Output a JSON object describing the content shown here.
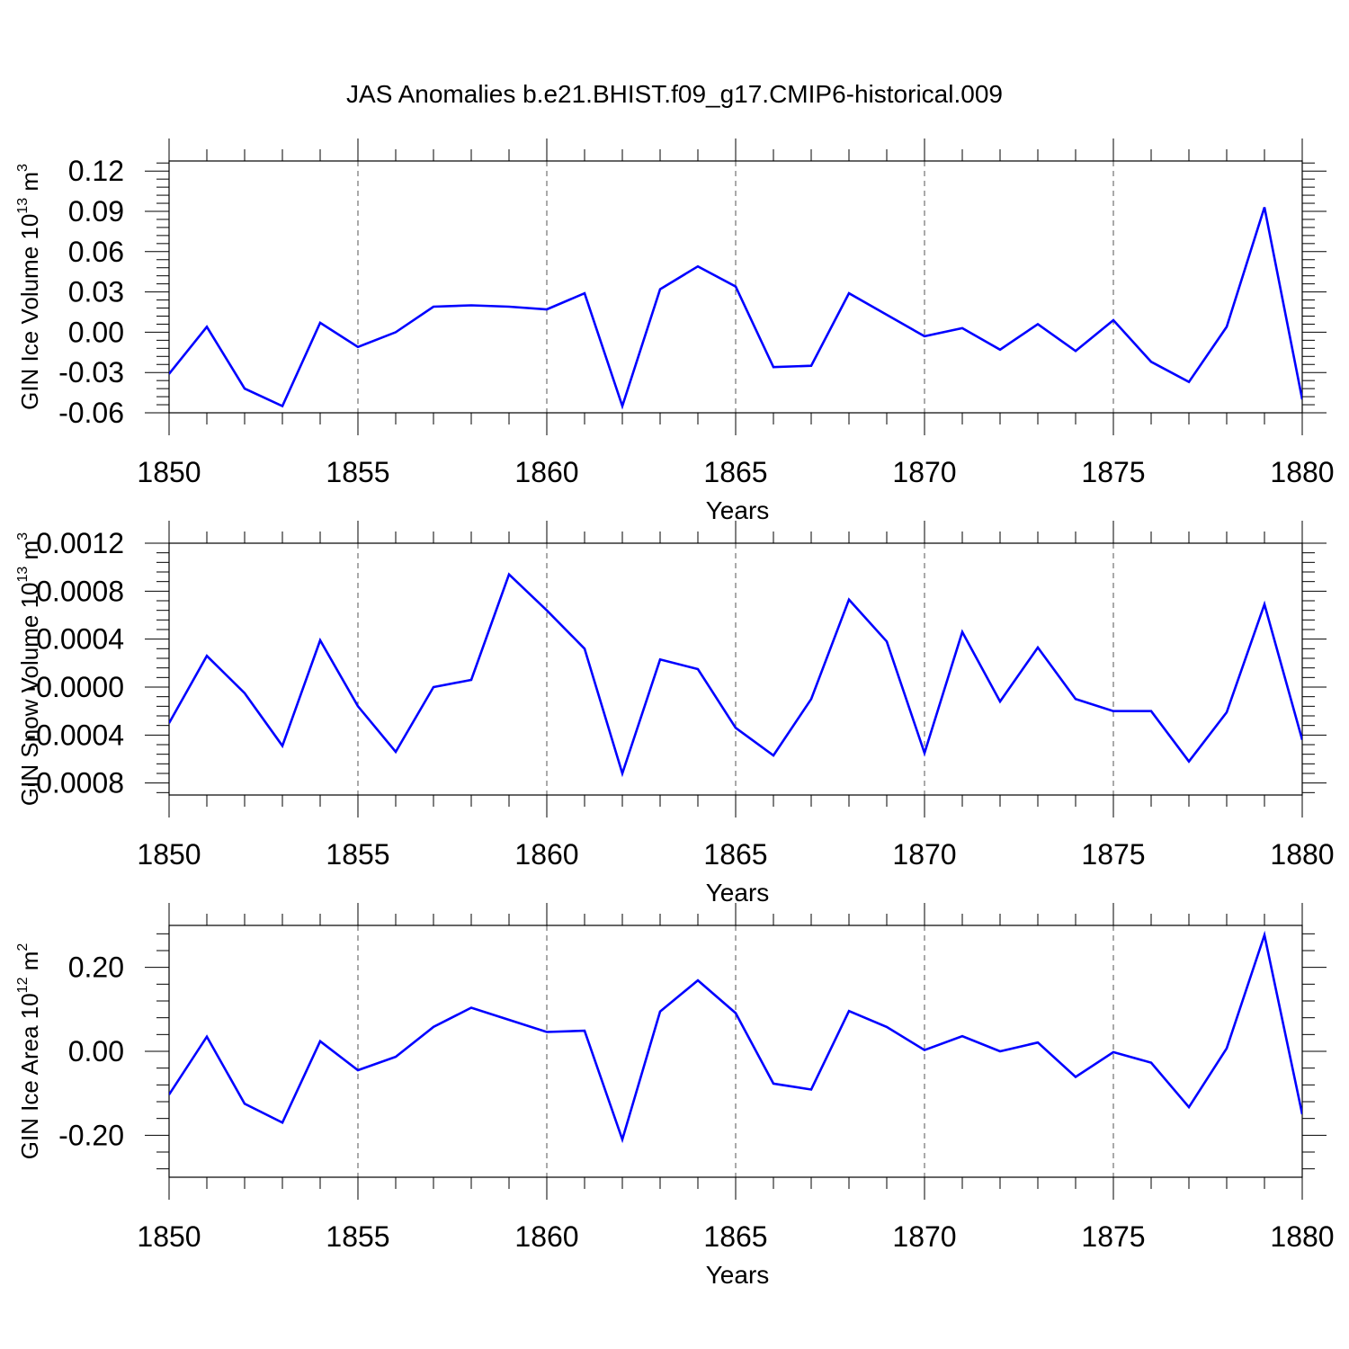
{
  "title": "JAS Anomalies b.e21.BHIST.f09_g17.CMIP6-historical.009",
  "colors": {
    "line": "#0000ff",
    "axis": "#000000",
    "grid": "#555555"
  },
  "chart_data": [
    {
      "type": "line",
      "title": "JAS Anomalies b.e21.BHIST.f09_g17.CMIP6-historical.009",
      "xlabel": "Years",
      "ylabel_base": "GIN Ice Volume 10",
      "ylabel_exp": "13",
      "ylabel_unit": " m",
      "ylabel_unit_exp": "3",
      "xlim": [
        1850,
        1880
      ],
      "ylim": [
        -0.06,
        0.1275
      ],
      "xticks": [
        1850,
        1855,
        1860,
        1865,
        1870,
        1875,
        1880
      ],
      "xtick_labels": [
        "1850",
        "1855",
        "1860",
        "1865",
        "1870",
        "1875",
        "1880"
      ],
      "yticks": [
        -0.06,
        -0.03,
        0.0,
        0.03,
        0.06,
        0.09,
        0.12
      ],
      "ytick_labels": [
        "-0.06",
        "-0.03",
        "0.00",
        "0.03",
        "0.06",
        "0.09",
        "0.12"
      ],
      "grid": "vertical-dashed",
      "x": [
        1850,
        1851,
        1852,
        1853,
        1854,
        1855,
        1856,
        1857,
        1858,
        1859,
        1860,
        1861,
        1862,
        1863,
        1864,
        1865,
        1866,
        1867,
        1868,
        1869,
        1870,
        1871,
        1872,
        1873,
        1874,
        1875,
        1876,
        1877,
        1878,
        1879,
        1880
      ],
      "series": [
        {
          "name": "GIN Ice Volume",
          "values": [
            -0.031,
            0.004,
            -0.042,
            -0.055,
            0.007,
            -0.011,
            0.0,
            0.019,
            0.02,
            0.019,
            0.017,
            0.029,
            -0.055,
            0.032,
            0.049,
            0.034,
            -0.026,
            -0.025,
            0.029,
            0.013,
            -0.003,
            0.003,
            -0.013,
            0.006,
            -0.014,
            0.009,
            -0.022,
            -0.037,
            0.004,
            0.093,
            -0.05
          ]
        }
      ]
    },
    {
      "type": "line",
      "xlabel": "Years",
      "ylabel_base": "GIN Snow Volume 10",
      "ylabel_exp": "13",
      "ylabel_unit": " m",
      "ylabel_unit_exp": "3",
      "xlim": [
        1850,
        1880
      ],
      "ylim": [
        -0.0009,
        0.0012
      ],
      "xticks": [
        1850,
        1855,
        1860,
        1865,
        1870,
        1875,
        1880
      ],
      "xtick_labels": [
        "1850",
        "1855",
        "1860",
        "1865",
        "1870",
        "1875",
        "1880"
      ],
      "yticks": [
        -0.0008,
        -0.0004,
        0.0,
        0.0004,
        0.0008,
        0.0012
      ],
      "ytick_labels": [
        "-0.0008",
        "-0.0004",
        "-0.0000",
        "0.0004",
        "0.0008",
        "0.0012"
      ],
      "grid": "vertical-dashed",
      "x": [
        1850,
        1851,
        1852,
        1853,
        1854,
        1855,
        1856,
        1857,
        1858,
        1859,
        1860,
        1861,
        1862,
        1863,
        1864,
        1865,
        1866,
        1867,
        1868,
        1869,
        1870,
        1871,
        1872,
        1873,
        1874,
        1875,
        1876,
        1877,
        1878,
        1879,
        1880
      ],
      "series": [
        {
          "name": "GIN Snow Volume",
          "values": [
            -0.0003,
            0.00026,
            -5e-05,
            -0.00049,
            0.00039,
            -0.00016,
            -0.00054,
            0.0,
            6e-05,
            0.00094,
            0.00064,
            0.00032,
            -0.00072,
            0.00023,
            0.00015,
            -0.00034,
            -0.00057,
            -0.0001,
            0.00073,
            0.00038,
            -0.00055,
            0.00046,
            -0.00012,
            0.00033,
            -0.0001,
            -0.0002,
            -0.0002,
            -0.00062,
            -0.00021,
            0.00069,
            -0.00044
          ]
        }
      ]
    },
    {
      "type": "line",
      "xlabel": "Years",
      "ylabel_base": "GIN Ice Area 10",
      "ylabel_exp": "12",
      "ylabel_unit": " m",
      "ylabel_unit_exp": "2",
      "xlim": [
        1850,
        1880
      ],
      "ylim": [
        -0.3,
        0.3
      ],
      "xticks": [
        1850,
        1855,
        1860,
        1865,
        1870,
        1875,
        1880
      ],
      "xtick_labels": [
        "1850",
        "1855",
        "1860",
        "1865",
        "1870",
        "1875",
        "1880"
      ],
      "yticks": [
        -0.2,
        0.0,
        0.2
      ],
      "ytick_labels": [
        "-0.20",
        "0.00",
        "0.20"
      ],
      "grid": "vertical-dashed",
      "x": [
        1850,
        1851,
        1852,
        1853,
        1854,
        1855,
        1856,
        1857,
        1858,
        1859,
        1860,
        1861,
        1862,
        1863,
        1864,
        1865,
        1866,
        1867,
        1868,
        1869,
        1870,
        1871,
        1872,
        1873,
        1874,
        1875,
        1876,
        1877,
        1878,
        1879,
        1880
      ],
      "series": [
        {
          "name": "GIN Ice Area",
          "values": [
            -0.103,
            0.035,
            -0.125,
            -0.17,
            0.024,
            -0.045,
            -0.013,
            0.058,
            0.104,
            0.075,
            0.046,
            0.049,
            -0.21,
            0.095,
            0.169,
            0.091,
            -0.077,
            -0.091,
            0.096,
            0.058,
            0.003,
            0.036,
            0.0,
            0.021,
            -0.061,
            -0.002,
            -0.027,
            -0.133,
            0.007,
            0.277,
            -0.15
          ]
        }
      ]
    }
  ]
}
